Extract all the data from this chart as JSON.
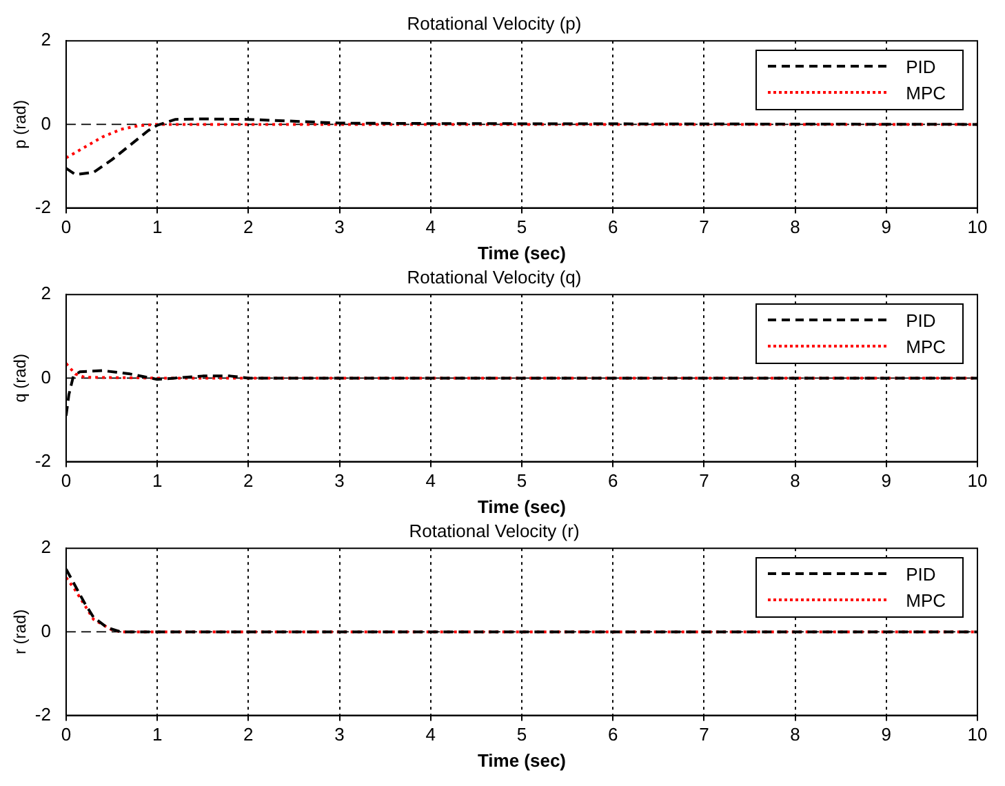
{
  "chart_data": [
    {
      "type": "line",
      "title": "Rotational Velocity (p)",
      "xlabel": "Time (sec)",
      "ylabel": "p (rad)",
      "xlim": [
        0,
        10
      ],
      "xticks": [
        0,
        1,
        2,
        3,
        4,
        5,
        6,
        7,
        8,
        9,
        10
      ],
      "ylim": [
        -2,
        2
      ],
      "yticks": [
        -2,
        0,
        2
      ],
      "grid": "x",
      "legend": "top right",
      "ref_lines": [
        {
          "axis": "y",
          "value": 0,
          "color": "#000000",
          "line_style": "dashed"
        }
      ],
      "series": [
        {
          "name": "PID",
          "color": "#000000",
          "line_style": "dashed",
          "x": [
            0,
            0.1,
            0.3,
            0.5,
            0.7,
            0.9,
            1.0,
            1.2,
            1.5,
            2,
            3,
            4,
            10
          ],
          "values": [
            -1.05,
            -1.2,
            -1.15,
            -0.85,
            -0.5,
            -0.15,
            -0.02,
            0.12,
            0.13,
            0.12,
            0.03,
            0.02,
            0
          ]
        },
        {
          "name": "MPC",
          "color": "#ff0000",
          "line_style": "dotted",
          "x": [
            0,
            0.2,
            0.4,
            0.6,
            0.8,
            1,
            10
          ],
          "values": [
            -0.8,
            -0.55,
            -0.3,
            -0.12,
            -0.03,
            0,
            0
          ]
        }
      ]
    },
    {
      "type": "line",
      "title": "Rotational Velocity (q)",
      "xlabel": "Time (sec)",
      "ylabel": "q (rad)",
      "xlim": [
        0,
        10
      ],
      "xticks": [
        0,
        1,
        2,
        3,
        4,
        5,
        6,
        7,
        8,
        9,
        10
      ],
      "ylim": [
        -2,
        2
      ],
      "yticks": [
        -2,
        0,
        2
      ],
      "grid": "x",
      "legend": "top right",
      "ref_lines": [
        {
          "axis": "y",
          "value": 0,
          "color": "#000000",
          "line_style": "dashed"
        }
      ],
      "series": [
        {
          "name": "PID",
          "color": "#000000",
          "line_style": "dashed",
          "x": [
            0,
            0.03,
            0.08,
            0.15,
            0.4,
            0.7,
            1,
            1.5,
            1.8,
            2,
            10
          ],
          "values": [
            -0.9,
            -0.4,
            0.05,
            0.15,
            0.18,
            0.1,
            -0.03,
            0.05,
            0.05,
            0,
            0
          ]
        },
        {
          "name": "MPC",
          "color": "#ff0000",
          "line_style": "dotted",
          "x": [
            0,
            0.1,
            0.2,
            1,
            10
          ],
          "values": [
            0.35,
            0.1,
            0.02,
            0,
            0
          ]
        }
      ]
    },
    {
      "type": "line",
      "title": "Rotational Velocity (r)",
      "xlabel": "Time (sec)",
      "ylabel": "r (rad)",
      "xlim": [
        0,
        10
      ],
      "xticks": [
        0,
        1,
        2,
        3,
        4,
        5,
        6,
        7,
        8,
        9,
        10
      ],
      "ylim": [
        -2,
        2
      ],
      "yticks": [
        -2,
        0,
        2
      ],
      "grid": "x",
      "legend": "top right",
      "ref_lines": [
        {
          "axis": "y",
          "value": 0,
          "color": "#000000",
          "line_style": "dashed"
        }
      ],
      "series": [
        {
          "name": "PID",
          "color": "#000000",
          "line_style": "dashed",
          "x": [
            0,
            0.1,
            0.2,
            0.3,
            0.45,
            0.6,
            10
          ],
          "values": [
            1.5,
            1.1,
            0.7,
            0.35,
            0.1,
            0,
            0
          ]
        },
        {
          "name": "MPC",
          "color": "#ff0000",
          "line_style": "dotted",
          "x": [
            0,
            0.1,
            0.2,
            0.3,
            0.5,
            0.6,
            10
          ],
          "values": [
            1.3,
            1.0,
            0.65,
            0.3,
            0.05,
            0,
            0
          ]
        }
      ]
    }
  ]
}
